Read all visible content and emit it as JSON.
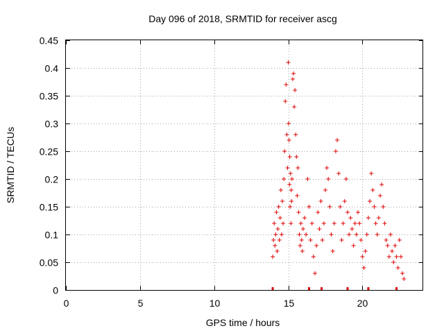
{
  "chart_data": {
    "type": "scatter",
    "title": "Day 096 of 2018, SRMTID for receiver ascg",
    "xlabel": "GPS time / hours",
    "ylabel": "SRMTID / TECUs",
    "xlim": [
      0,
      24.1
    ],
    "ylim": [
      0,
      0.45
    ],
    "grid": true,
    "x_ticks": [
      0,
      5,
      10,
      15,
      20
    ],
    "x_tick_labels": [
      "0",
      "5",
      "10",
      "15",
      "20"
    ],
    "y_ticks": [
      0,
      0.05,
      0.1,
      0.15,
      0.2,
      0.25,
      0.3,
      0.35,
      0.4,
      0.45
    ],
    "y_tick_labels": [
      "0",
      "0.05",
      "0.1",
      "0.15",
      "0.2",
      "0.25",
      "0.3",
      "0.35",
      "0.4",
      "0.45"
    ],
    "marker": "+",
    "color": "#e00000",
    "series": [
      {
        "name": "SRMTID",
        "x": [
          13.95,
          14.0,
          14.05,
          14.1,
          14.15,
          14.2,
          14.25,
          14.3,
          14.35,
          14.4,
          14.45,
          14.5,
          14.55,
          14.6,
          14.65,
          14.7,
          14.75,
          14.8,
          14.85,
          14.9,
          14.95,
          15.0,
          15.02,
          15.05,
          15.08,
          15.1,
          15.12,
          15.15,
          15.18,
          15.2,
          15.22,
          15.25,
          15.3,
          15.35,
          15.4,
          15.45,
          15.5,
          15.55,
          15.6,
          15.65,
          15.7,
          15.75,
          15.8,
          15.85,
          15.9,
          15.95,
          16.0,
          16.1,
          16.2,
          16.3,
          16.4,
          16.5,
          16.6,
          16.7,
          16.8,
          16.9,
          17.0,
          17.1,
          17.2,
          17.3,
          17.4,
          17.5,
          17.6,
          17.7,
          17.8,
          17.9,
          18.0,
          18.1,
          18.2,
          18.3,
          18.4,
          18.5,
          18.6,
          18.7,
          18.8,
          18.9,
          19.0,
          19.1,
          19.2,
          19.3,
          19.4,
          19.5,
          19.6,
          19.7,
          19.8,
          19.9,
          20.0,
          20.1,
          20.2,
          20.3,
          20.4,
          20.5,
          20.6,
          20.7,
          20.8,
          20.9,
          21.0,
          21.1,
          21.2,
          21.3,
          21.4,
          21.5,
          21.6,
          21.7,
          21.8,
          21.9,
          22.0,
          22.1,
          22.2,
          22.3,
          22.4,
          22.5,
          22.6,
          22.7,
          22.8
        ],
        "y": [
          0.06,
          0.09,
          0.12,
          0.08,
          0.1,
          0.14,
          0.07,
          0.11,
          0.15,
          0.09,
          0.13,
          0.18,
          0.1,
          0.16,
          0.12,
          0.2,
          0.25,
          0.34,
          0.37,
          0.28,
          0.22,
          0.41,
          0.3,
          0.27,
          0.19,
          0.24,
          0.15,
          0.21,
          0.12,
          0.18,
          0.16,
          0.2,
          0.38,
          0.39,
          0.33,
          0.36,
          0.28,
          0.24,
          0.17,
          0.22,
          0.14,
          0.1,
          0.08,
          0.12,
          0.09,
          0.07,
          0.11,
          0.13,
          0.1,
          0.2,
          0.15,
          0.09,
          0.12,
          0.06,
          0.03,
          0.08,
          0.14,
          0.11,
          0.16,
          0.09,
          0.12,
          0.18,
          0.22,
          0.2,
          0.15,
          0.1,
          0.07,
          0.12,
          0.25,
          0.27,
          0.21,
          0.15,
          0.09,
          0.12,
          0.16,
          0.2,
          0.14,
          0.1,
          0.13,
          0.11,
          0.08,
          0.12,
          0.1,
          0.14,
          0.12,
          0.09,
          0.06,
          0.04,
          0.07,
          0.1,
          0.13,
          0.16,
          0.21,
          0.18,
          0.15,
          0.12,
          0.1,
          0.13,
          0.17,
          0.19,
          0.15,
          0.12,
          0.09,
          0.08,
          0.06,
          0.1,
          0.07,
          0.05,
          0.08,
          0.06,
          0.04,
          0.09,
          0.06,
          0.03,
          0.02
        ]
      },
      {
        "name": "zero-line markers",
        "x": [
          13.95,
          16.4,
          17.25,
          19.0,
          20.4,
          22.3
        ],
        "y": [
          0,
          0,
          0,
          0,
          0,
          0
        ]
      }
    ]
  }
}
